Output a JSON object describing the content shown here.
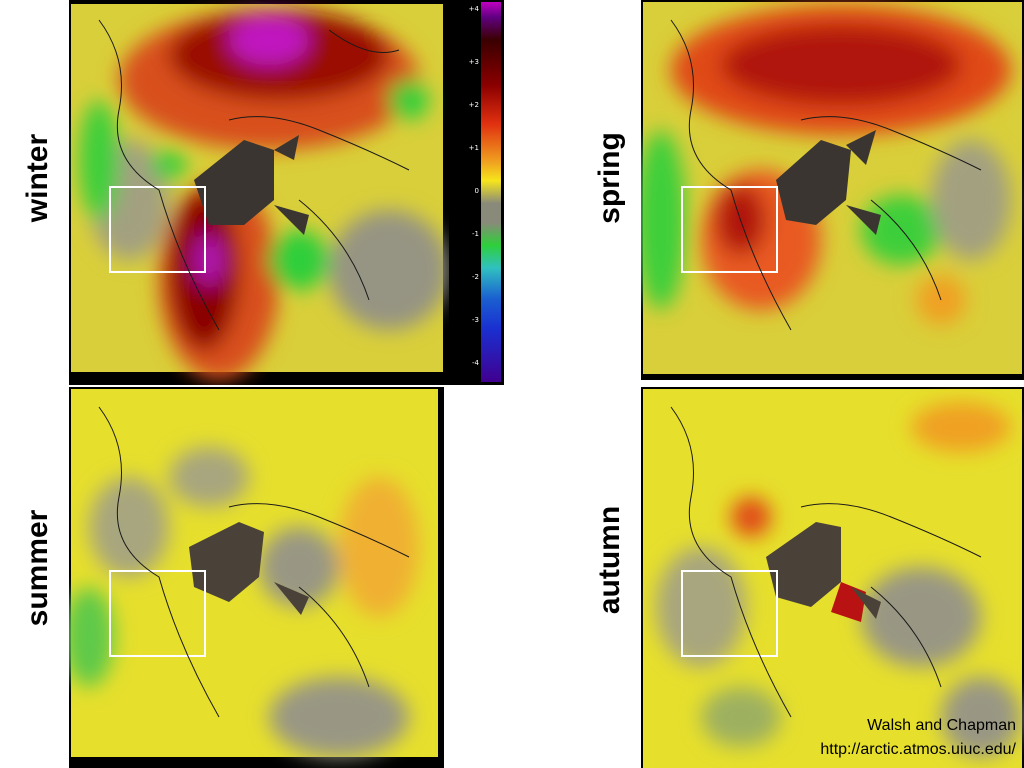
{
  "labels": {
    "winter": "winter",
    "spring": "spring",
    "summer": "summer",
    "autumn": "autumn"
  },
  "colorbar": {
    "ticks": [
      "+4",
      "+3",
      "+2",
      "+1",
      "0",
      "-1",
      "-2",
      "-3",
      "-4"
    ]
  },
  "credit": {
    "author": "Walsh and Chapman",
    "url": "http://arctic.atmos.uiuc.edu/"
  },
  "colors": {
    "positive_strong": "#8b0000",
    "positive": "#e03010",
    "positive_weak": "#f6e51c",
    "neutral": "#8a8a7a",
    "negative": "#2ecf3a",
    "negative_strong": "#1a2fd0",
    "extreme_positive": "#c000c0",
    "mask": "#3a3530",
    "box": "#ffffff"
  }
}
